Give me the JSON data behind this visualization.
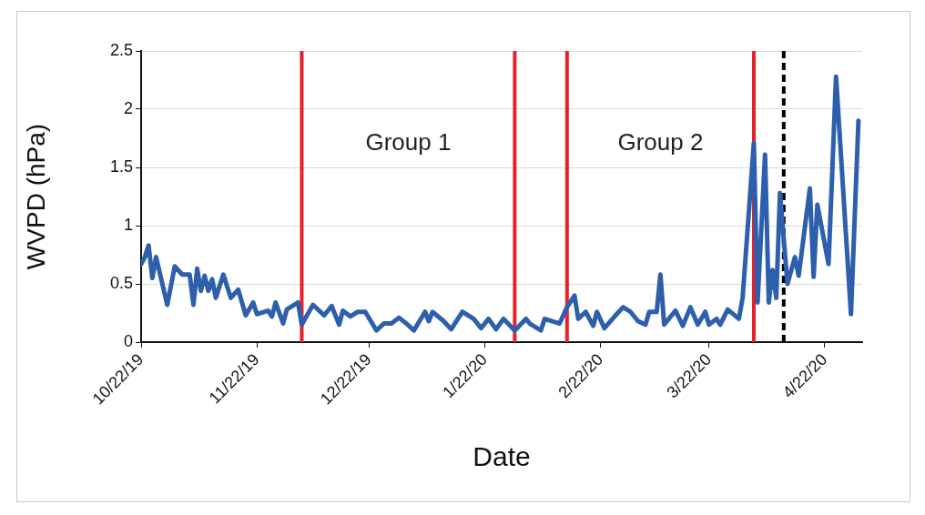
{
  "chart_data": {
    "type": "line",
    "xlabel": "Date",
    "ylabel": "WVPD (hPa)",
    "x": [
      "2019-10-22",
      "2019-10-23",
      "2019-10-24",
      "2019-10-25",
      "2019-10-26",
      "2019-10-29",
      "2019-10-31",
      "2019-11-02",
      "2019-11-04",
      "2019-11-05",
      "2019-11-06",
      "2019-11-07",
      "2019-11-08",
      "2019-11-09",
      "2019-11-10",
      "2019-11-11",
      "2019-11-13",
      "2019-11-15",
      "2019-11-17",
      "2019-11-19",
      "2019-11-21",
      "2019-11-22",
      "2019-11-25",
      "2019-11-26",
      "2019-11-27",
      "2019-11-29",
      "2019-11-30",
      "2019-12-03",
      "2019-12-04",
      "2019-12-07",
      "2019-12-10",
      "2019-12-12",
      "2019-12-14",
      "2019-12-15",
      "2019-12-17",
      "2019-12-19",
      "2019-12-21",
      "2019-12-24",
      "2019-12-26",
      "2019-12-28",
      "2019-12-30",
      "2020-01-01",
      "2020-01-03",
      "2020-01-06",
      "2020-01-07",
      "2020-01-08",
      "2020-01-11",
      "2020-01-13",
      "2020-01-16",
      "2020-01-19",
      "2020-01-21",
      "2020-01-23",
      "2020-01-25",
      "2020-01-27",
      "2020-01-30",
      "2020-02-02",
      "2020-02-03",
      "2020-02-06",
      "2020-02-07",
      "2020-02-11",
      "2020-02-13",
      "2020-02-15",
      "2020-02-16",
      "2020-02-18",
      "2020-02-20",
      "2020-02-21",
      "2020-02-23",
      "2020-02-26",
      "2020-02-28",
      "2020-03-01",
      "2020-03-03",
      "2020-03-05",
      "2020-03-06",
      "2020-03-08",
      "2020-03-09",
      "2020-03-10",
      "2020-03-13",
      "2020-03-15",
      "2020-03-17",
      "2020-03-19",
      "2020-03-21",
      "2020-03-22",
      "2020-03-24",
      "2020-03-25",
      "2020-03-27",
      "2020-03-30",
      "2020-03-31",
      "2020-04-03",
      "2020-04-04",
      "2020-04-06",
      "2020-04-07",
      "2020-04-08",
      "2020-04-09",
      "2020-04-10",
      "2020-04-12",
      "2020-04-14",
      "2020-04-15",
      "2020-04-18",
      "2020-04-19",
      "2020-04-20",
      "2020-04-23",
      "2020-04-25",
      "2020-04-29",
      "2020-05-01"
    ],
    "series": [
      {
        "color": "#2e5fac",
        "values": [
          0.67,
          0.73,
          0.83,
          0.55,
          0.73,
          0.32,
          0.65,
          0.58,
          0.58,
          0.32,
          0.63,
          0.44,
          0.57,
          0.44,
          0.54,
          0.38,
          0.58,
          0.38,
          0.45,
          0.23,
          0.34,
          0.24,
          0.27,
          0.22,
          0.34,
          0.16,
          0.28,
          0.34,
          0.15,
          0.32,
          0.23,
          0.31,
          0.15,
          0.27,
          0.22,
          0.26,
          0.26,
          0.1,
          0.16,
          0.16,
          0.21,
          0.16,
          0.1,
          0.26,
          0.18,
          0.26,
          0.18,
          0.11,
          0.26,
          0.2,
          0.12,
          0.2,
          0.11,
          0.2,
          0.1,
          0.2,
          0.16,
          0.1,
          0.2,
          0.16,
          0.3,
          0.4,
          0.2,
          0.26,
          0.14,
          0.26,
          0.12,
          0.23,
          0.3,
          0.26,
          0.18,
          0.15,
          0.26,
          0.26,
          0.58,
          0.15,
          0.27,
          0.14,
          0.3,
          0.15,
          0.26,
          0.15,
          0.2,
          0.15,
          0.28,
          0.2,
          0.38,
          1.71,
          0.34,
          1.61,
          0.34,
          0.62,
          0.38,
          1.28,
          0.5,
          0.73,
          0.57,
          1.32,
          0.56,
          1.18,
          0.67,
          2.28,
          0.24,
          1.9
        ]
      }
    ],
    "xlim": [
      "2019-10-22",
      "2020-05-02"
    ],
    "xticks": [
      {
        "value": "2019-10-22",
        "label": "10/22/19"
      },
      {
        "value": "2019-11-22",
        "label": "11/22/19"
      },
      {
        "value": "2019-12-22",
        "label": "12/22/19"
      },
      {
        "value": "2020-01-22",
        "label": "1/22/20"
      },
      {
        "value": "2020-02-22",
        "label": "2/22/20"
      },
      {
        "value": "2020-03-22",
        "label": "3/22/20"
      },
      {
        "value": "2020-04-22",
        "label": "4/22/20"
      }
    ],
    "ylim": [
      0,
      2.5
    ],
    "yticks": [
      0,
      0.5,
      1,
      1.5,
      2,
      2.5
    ],
    "grid": "y",
    "legend": false,
    "marker": "none",
    "line_style": "solid",
    "ref_lines": [
      {
        "axis": "x",
        "value": "2019-12-04",
        "color": "#e8202a",
        "line_style": "solid"
      },
      {
        "axis": "x",
        "value": "2020-01-30",
        "color": "#e8202a",
        "line_style": "solid"
      },
      {
        "axis": "x",
        "value": "2020-02-13",
        "color": "#e8202a",
        "line_style": "solid"
      },
      {
        "axis": "x",
        "value": "2020-04-03",
        "color": "#e8202a",
        "line_style": "solid"
      },
      {
        "axis": "x",
        "value": "2020-04-11",
        "color": "#000000",
        "line_style": "dashed"
      }
    ],
    "annotations": [
      "Group 1",
      "Group 2"
    ]
  }
}
